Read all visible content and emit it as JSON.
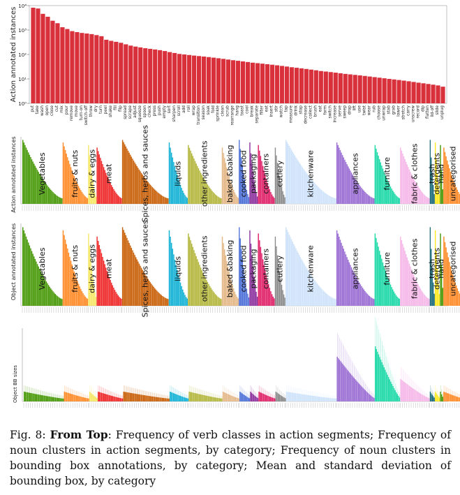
{
  "caption": {
    "label": "Fig. 8:",
    "bold": "From Top",
    "text": ": Frequency of verb classes in action segments; Frequency of noun clusters in action segments, by category; Frequency of noun clusters in bounding box annotations, by category; Mean and standard deviation of bounding box, by category"
  },
  "colors": {
    "verb_bar": "#d9313c",
    "categories": [
      "#4a9a0c",
      "#ff8c2a",
      "#f5e663",
      "#ef2b2b",
      "#c9620c",
      "#17b3d6",
      "#b5b840",
      "#e4b98a",
      "#4f72d8",
      "#8a2d9c",
      "#e0256b",
      "#8a8a8a",
      "#cfe3fa",
      "#9b6fd3",
      "#1fd9a8",
      "#f5b8e8",
      "#1a6b7a",
      "#ffe81a"
    ]
  },
  "chart_data": [
    {
      "type": "bar",
      "ylabel": "Action annotated instances",
      "yscale": "log",
      "ylim": [
        1,
        10000
      ],
      "yticks": [
        "10⁰",
        "10¹",
        "10²",
        "10³",
        "10⁴"
      ],
      "categories": [
        "put",
        "take",
        "wash",
        "open",
        "close",
        "cut",
        "mix",
        "pour",
        "remove",
        "move",
        "turn-on",
        "switch-off",
        "throw",
        "dry",
        "turn",
        "peel",
        "shake",
        "fill",
        "flip",
        "spread",
        "scrape",
        "adjust",
        "squeeze",
        "spoon",
        "check",
        "press",
        "push",
        "empty",
        "sort",
        "sharpen",
        "scroll",
        "add",
        "roll",
        "wrap",
        "transition",
        "season",
        "soak",
        "fold",
        "sprinkle",
        "clean",
        "scrub",
        "rearrange",
        "hang",
        "toast",
        "cool",
        "break",
        "separate",
        "filter",
        "eat",
        "insert",
        "stir",
        "watch",
        "tap",
        "measure",
        "drink",
        "stop",
        "decrease",
        "collect",
        "brush",
        "eat",
        "form",
        "switch",
        "increase",
        "serve",
        "sweep",
        "drop",
        "lift",
        "use",
        "twist",
        "wear",
        "rub",
        "choose",
        "unwrap",
        "stab",
        "grab",
        "lower",
        "stretch",
        "carry",
        "unscrew",
        "record",
        "dip",
        "flatten",
        "lid-off",
        "slide",
        "unplug"
      ],
      "values": [
        8200,
        7600,
        4600,
        3500,
        2400,
        1900,
        1300,
        1100,
        900,
        820,
        760,
        720,
        680,
        620,
        560,
        400,
        360,
        330,
        300,
        260,
        230,
        210,
        195,
        180,
        170,
        160,
        150,
        138,
        125,
        115,
        105,
        100,
        95,
        90,
        86,
        82,
        78,
        74,
        70,
        66,
        62,
        58,
        55,
        52,
        49,
        46,
        44,
        42,
        40,
        38,
        36,
        34,
        32,
        30,
        28.5,
        27,
        25.5,
        24,
        22.5,
        21,
        20,
        19,
        18,
        17,
        16,
        15.3,
        14.6,
        13.9,
        13.2,
        12.5,
        11.8,
        11.2,
        10.6,
        10,
        9.5,
        9,
        8.5,
        8,
        7.5,
        7,
        6.6,
        6.2,
        5.8,
        5.4,
        4.8
      ]
    },
    {
      "type": "bar",
      "ylabel": "Action annotated instances",
      "categories": [
        "Vegetables",
        "fruits & nuts",
        "dairy & eggs",
        "meat",
        "Spices, herbs and sauces",
        "liquids",
        "other ingredients",
        "baked &baking",
        "cooked food",
        "packaging",
        "containers",
        "cutlery",
        "kitchenware",
        "appliances",
        "furniture",
        "fabric & clothes",
        "trash",
        "detergents",
        "hand",
        "uncategorised"
      ]
    },
    {
      "type": "bar",
      "ylabel": "Object annotated instances",
      "categories": [
        "Vegetables",
        "fruits & nuts",
        "dairy & eggs",
        "meat",
        "Spices, herbs and sauces",
        "liquids",
        "other ingredients",
        "baked &baking",
        "cooked food",
        "packaging",
        "containers",
        "cutlery",
        "kitchenware",
        "appliances",
        "furniture",
        "fabric & clothes",
        "trash",
        "detergents",
        "hand",
        "uncategorised"
      ]
    },
    {
      "type": "bar",
      "ylabel": "Object BB sizes"
    }
  ]
}
